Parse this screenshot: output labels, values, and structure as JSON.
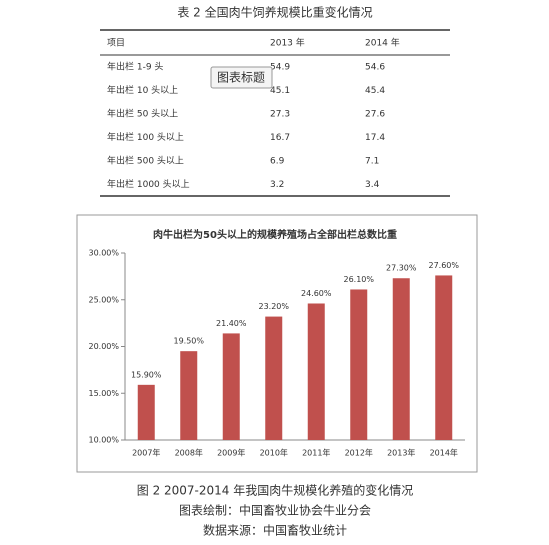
{
  "table": {
    "title": "表 2  全国肉牛饲养规模比重变化情况",
    "header": [
      "项目",
      "2013 年",
      "2014 年"
    ],
    "rows": [
      [
        "年出栏 1-9 头",
        54.9,
        54.6
      ],
      [
        "年出栏 10 头以上",
        45.1,
        45.4
      ],
      [
        "年出栏 50 头以上",
        27.3,
        27.6
      ],
      [
        "年出栏 100 头以上",
        16.7,
        17.4
      ],
      [
        "年出栏 500 头以上",
        6.9,
        7.1
      ],
      [
        "年出栏 1000 头以上",
        3.2,
        3.4
      ]
    ],
    "popup": "图表标题"
  },
  "chart_data": {
    "type": "bar",
    "title": "肉牛出栏为50头以上的规模养殖场占全部出栏总数比重",
    "categories": [
      "2007年",
      "2008年",
      "2009年",
      "2010年",
      "2011年",
      "2012年",
      "2013年",
      "2014年"
    ],
    "values": [
      15.9,
      19.5,
      21.4,
      23.2,
      24.6,
      26.1,
      27.3,
      27.6
    ],
    "value_labels": [
      "15.90%",
      "19.50%",
      "21.40%",
      "23.20%",
      "24.60%",
      "26.10%",
      "27.30%",
      "27.60%"
    ],
    "color": "#c0504d",
    "ylim": [
      10,
      30
    ],
    "yticks": [
      {
        "value": 10,
        "label": "10.00%"
      },
      {
        "value": 15,
        "label": "15.00%"
      },
      {
        "value": 20,
        "label": "20.00%"
      },
      {
        "value": 25,
        "label": "25.00%"
      },
      {
        "value": 30,
        "label": "30.00%"
      }
    ]
  },
  "caption": [
    "图 2 2007-2014 年我国肉牛规模化养殖的变化情况",
    "图表绘制：中国畜牧业协会牛业分会",
    "数据来源：中国畜牧业统计"
  ]
}
